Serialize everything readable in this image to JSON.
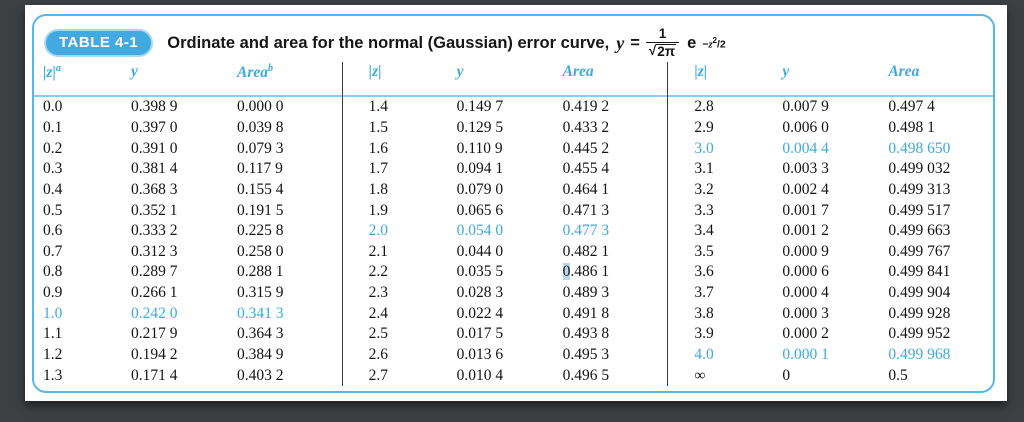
{
  "title": {
    "badge": "TABLE 4-1",
    "text": "Ordinate and area for the normal (Gaussian) error curve,",
    "formula": {
      "lhs": "y",
      "eq": "=",
      "numerator": "1",
      "radical": "√",
      "radicand": "2π",
      "exp_base": "e",
      "exp_minus": "−",
      "exp_var": "z",
      "exp_pow": "2",
      "exp_rest": "/2"
    }
  },
  "colors": {
    "accent_blue": "#3fa9dc",
    "badge_blue": "#42aae1",
    "card_border_blue": "#56b6e9",
    "header_rule_blue": "#8ec9ee",
    "divider_dark": "#3c3c3c",
    "selection_blue": "#b9d9ef",
    "outer_background": "#3d4043",
    "page_white": "#ffffff",
    "text_black": "#141414"
  },
  "groups": [
    {
      "headers": {
        "z": "|z|",
        "z_sup": "a",
        "y": "y",
        "area": "Area",
        "area_sup": "b"
      },
      "rows": [
        {
          "z": "0.0",
          "y": "0.398 9",
          "area": "0.000 0"
        },
        {
          "z": "0.1",
          "y": "0.397 0",
          "area": "0.039 8"
        },
        {
          "z": "0.2",
          "y": "0.391 0",
          "area": "0.079 3"
        },
        {
          "z": "0.3",
          "y": "0.381 4",
          "area": "0.117 9"
        },
        {
          "z": "0.4",
          "y": "0.368 3",
          "area": "0.155 4"
        },
        {
          "z": "0.5",
          "y": "0.352 1",
          "area": "0.191 5"
        },
        {
          "z": "0.6",
          "y": "0.333 2",
          "area": "0.225 8"
        },
        {
          "z": "0.7",
          "y": "0.312 3",
          "area": "0.258 0"
        },
        {
          "z": "0.8",
          "y": "0.289 7",
          "area": "0.288 1"
        },
        {
          "z": "0.9",
          "y": "0.266 1",
          "area": "0.315 9"
        },
        {
          "z": "1.0",
          "y": "0.242 0",
          "area": "0.341 3",
          "hl": true
        },
        {
          "z": "1.1",
          "y": "0.217 9",
          "area": "0.364 3"
        },
        {
          "z": "1.2",
          "y": "0.194 2",
          "area": "0.384 9"
        },
        {
          "z": "1.3",
          "y": "0.171 4",
          "area": "0.403 2"
        }
      ]
    },
    {
      "headers": {
        "z": "|z|",
        "y": "y",
        "area": "Area"
      },
      "rows": [
        {
          "z": "1.4",
          "y": "0.149 7",
          "area": "0.419 2"
        },
        {
          "z": "1.5",
          "y": "0.129 5",
          "area": "0.433 2"
        },
        {
          "z": "1.6",
          "y": "0.110 9",
          "area": "0.445 2"
        },
        {
          "z": "1.7",
          "y": "0.094 1",
          "area": "0.455 4"
        },
        {
          "z": "1.8",
          "y": "0.079 0",
          "area": "0.464 1"
        },
        {
          "z": "1.9",
          "y": "0.065 6",
          "area": "0.471 3"
        },
        {
          "z": "2.0",
          "y": "0.054 0",
          "area": "0.477 3",
          "hl": true
        },
        {
          "z": "2.1",
          "y": "0.044 0",
          "area": "0.482 1"
        },
        {
          "z": "2.2",
          "y": "0.035 5",
          "area": "0.486 1",
          "sel": true
        },
        {
          "z": "2.3",
          "y": "0.028 3",
          "area": "0.489 3"
        },
        {
          "z": "2.4",
          "y": "0.022 4",
          "area": "0.491 8"
        },
        {
          "z": "2.5",
          "y": "0.017 5",
          "area": "0.493 8"
        },
        {
          "z": "2.6",
          "y": "0.013 6",
          "area": "0.495 3"
        },
        {
          "z": "2.7",
          "y": "0.010 4",
          "area": "0.496 5"
        }
      ]
    },
    {
      "headers": {
        "z": "|z|",
        "y": "y",
        "area": "Area"
      },
      "rows": [
        {
          "z": "2.8",
          "y": "0.007 9",
          "area": "0.497 4"
        },
        {
          "z": "2.9",
          "y": "0.006 0",
          "area": "0.498 1"
        },
        {
          "z": "3.0",
          "y": "0.004 4",
          "area": "0.498 650",
          "hl": true
        },
        {
          "z": "3.1",
          "y": "0.003 3",
          "area": "0.499 032"
        },
        {
          "z": "3.2",
          "y": "0.002 4",
          "area": "0.499 313"
        },
        {
          "z": "3.3",
          "y": "0.001 7",
          "area": "0.499 517"
        },
        {
          "z": "3.4",
          "y": "0.001 2",
          "area": "0.499 663"
        },
        {
          "z": "3.5",
          "y": "0.000 9",
          "area": "0.499 767"
        },
        {
          "z": "3.6",
          "y": "0.000 6",
          "area": "0.499 841"
        },
        {
          "z": "3.7",
          "y": "0.000 4",
          "area": "0.499 904"
        },
        {
          "z": "3.8",
          "y": "0.000 3",
          "area": "0.499 928"
        },
        {
          "z": "3.9",
          "y": "0.000 2",
          "area": "0.499 952"
        },
        {
          "z": "4.0",
          "y": "0.000 1",
          "area": "0.499 968",
          "hl": true
        },
        {
          "z": "∞",
          "y": "0",
          "area": "0.5"
        }
      ]
    }
  ]
}
